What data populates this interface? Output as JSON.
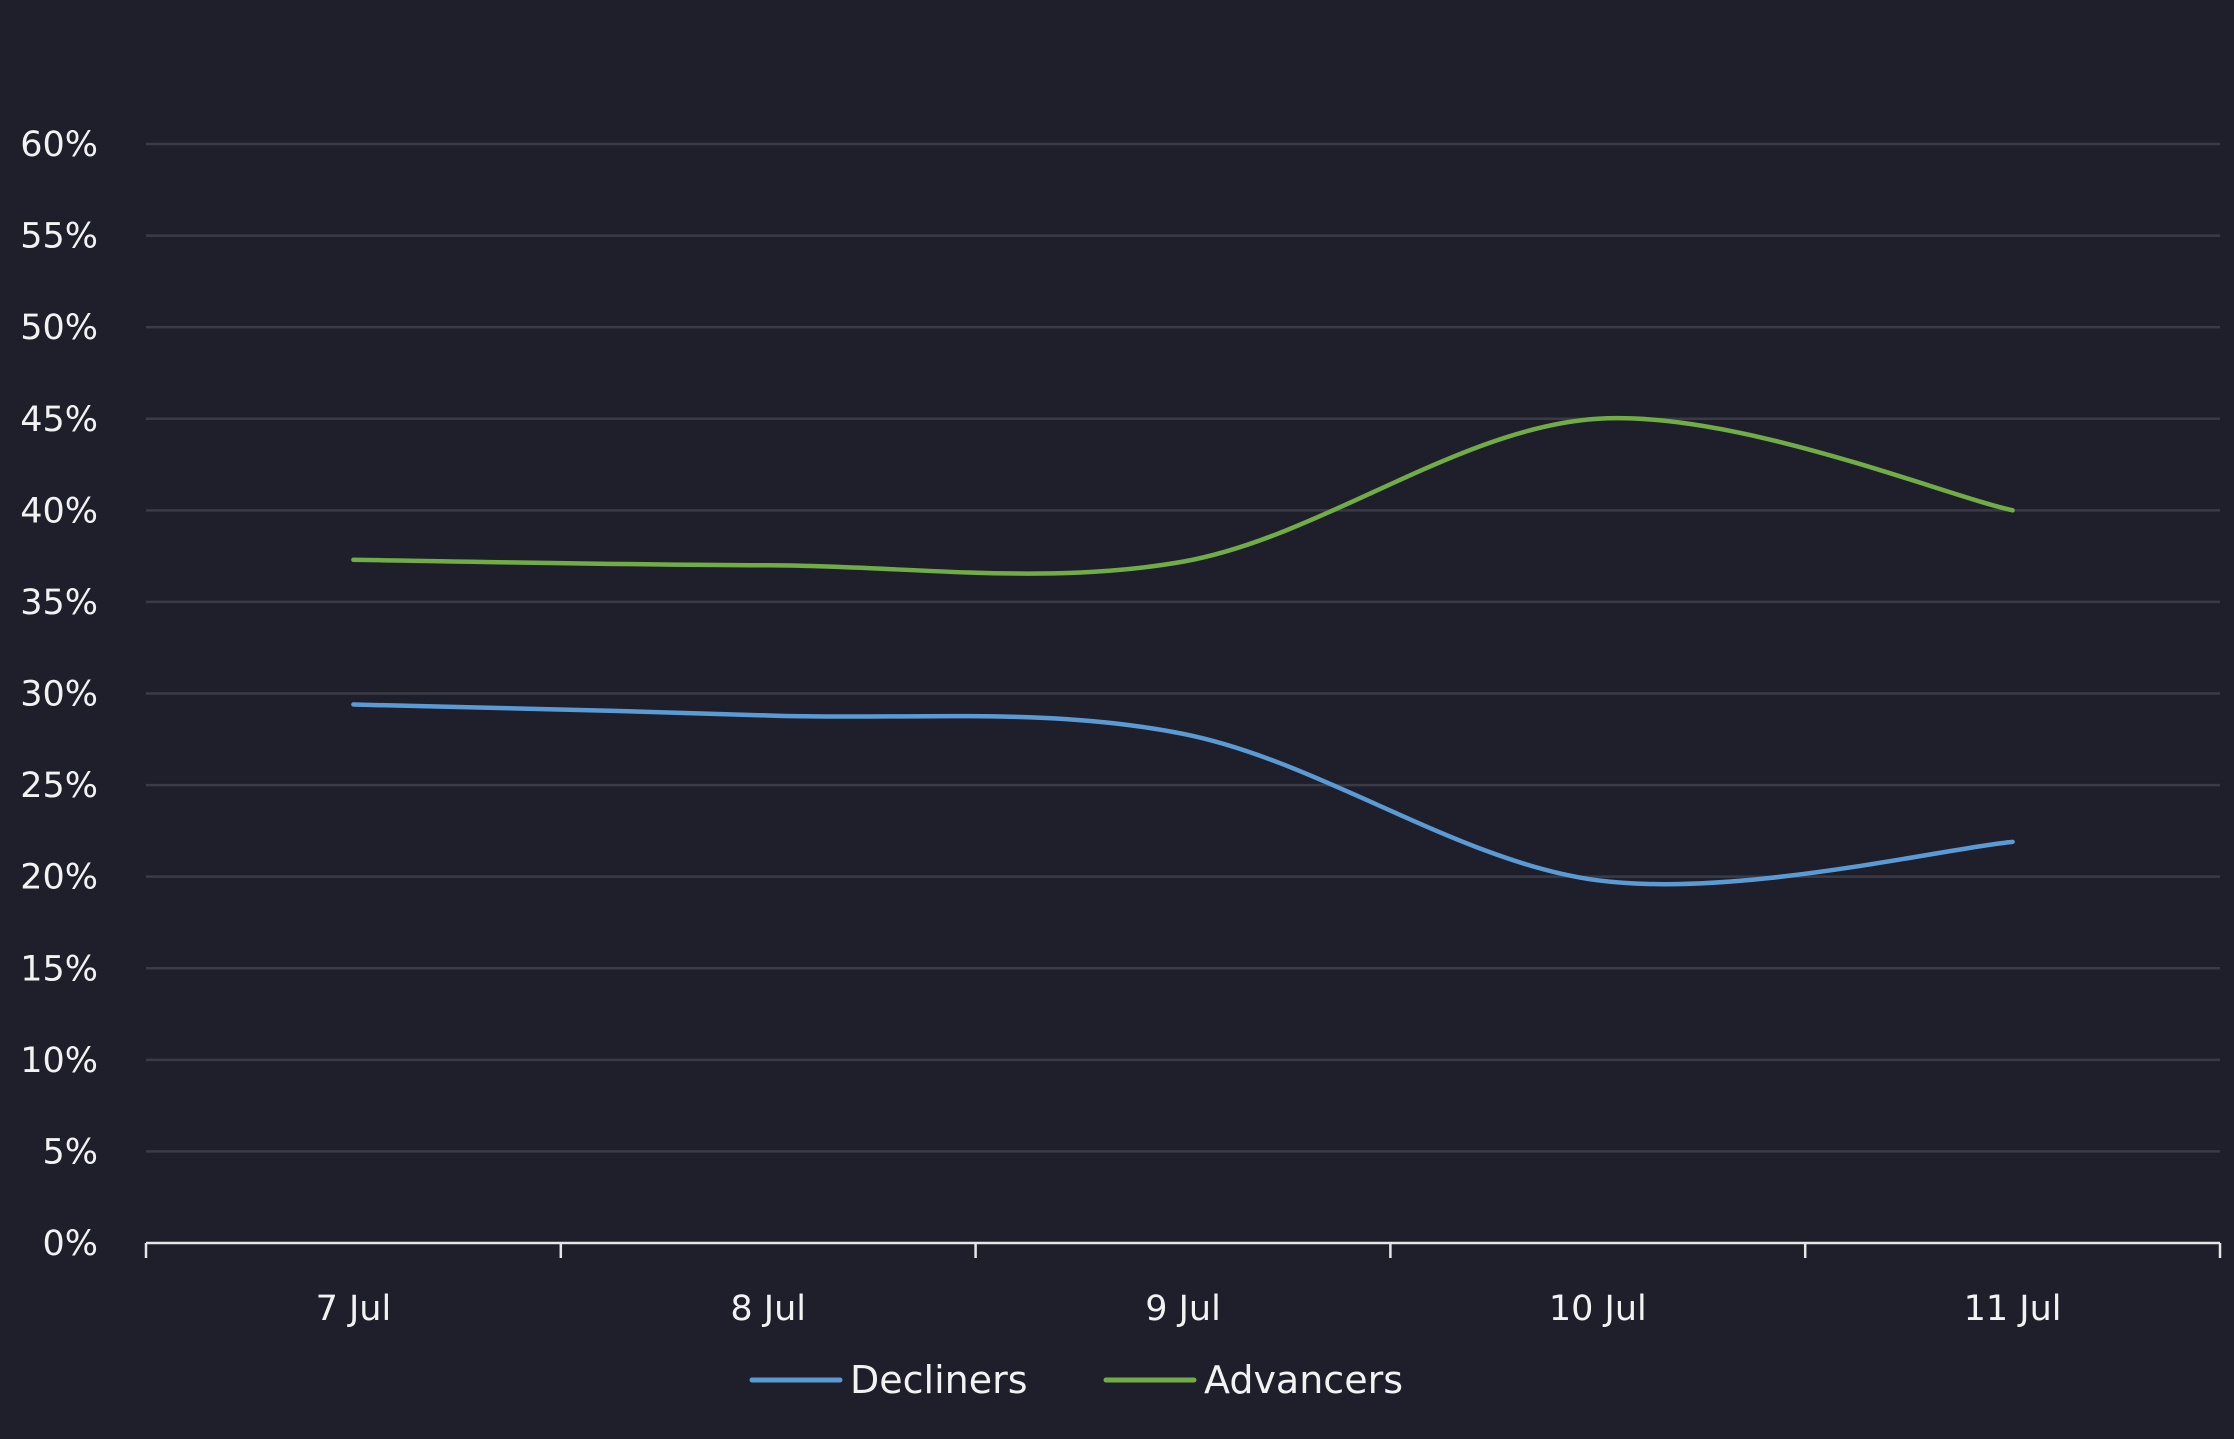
{
  "chart_data": {
    "type": "line",
    "title": "",
    "xlabel": "",
    "ylabel": "",
    "categories": [
      "7 Jul",
      "8 Jul",
      "9 Jul",
      "10 Jul",
      "11 Jul"
    ],
    "series": [
      {
        "name": "Decliners",
        "values": [
          29.4,
          28.8,
          27.8,
          19.8,
          21.9
        ],
        "color": "#5b9bd5"
      },
      {
        "name": "Advancers",
        "values": [
          37.3,
          37.0,
          37.2,
          45.0,
          40.0
        ],
        "color": "#70ad47"
      }
    ],
    "y_ticks": [
      "0%",
      "5%",
      "10%",
      "15%",
      "20%",
      "25%",
      "30%",
      "35%",
      "40%",
      "45%",
      "50%",
      "55%",
      "60%"
    ],
    "ylim": [
      0,
      60
    ],
    "y_unit": "%",
    "grid": true,
    "smooth": true,
    "legend_position": "bottom"
  }
}
